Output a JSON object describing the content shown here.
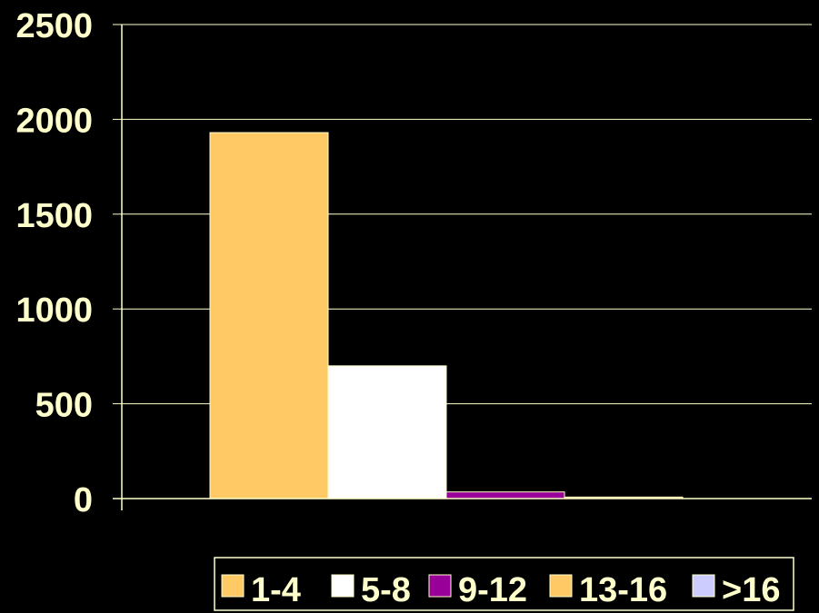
{
  "colors": {
    "background": "#000000",
    "axis": "#FFFFCC",
    "tick_text": "#FFFFCC",
    "legend_text": "#FFFFCC",
    "legend_border": "#FFFFCC"
  },
  "chart_data": {
    "type": "bar",
    "title": "",
    "xlabel": "",
    "ylabel": "",
    "ylim": [
      0,
      2500
    ],
    "yticks": [
      0,
      500,
      1000,
      1500,
      2000,
      2500
    ],
    "grid": true,
    "legend_position": "bottom-right",
    "series": [
      {
        "name": "1-4",
        "value": 1930,
        "color": "#FFC966"
      },
      {
        "name": "5-8",
        "value": 700,
        "color": "#FFFFFF"
      },
      {
        "name": "9-12",
        "value": 35,
        "color": "#990099"
      },
      {
        "name": "13-16",
        "value": 8,
        "color": "#FFC966"
      },
      {
        "name": ">16",
        "value": 0,
        "color": "#CCCCFF"
      }
    ]
  }
}
